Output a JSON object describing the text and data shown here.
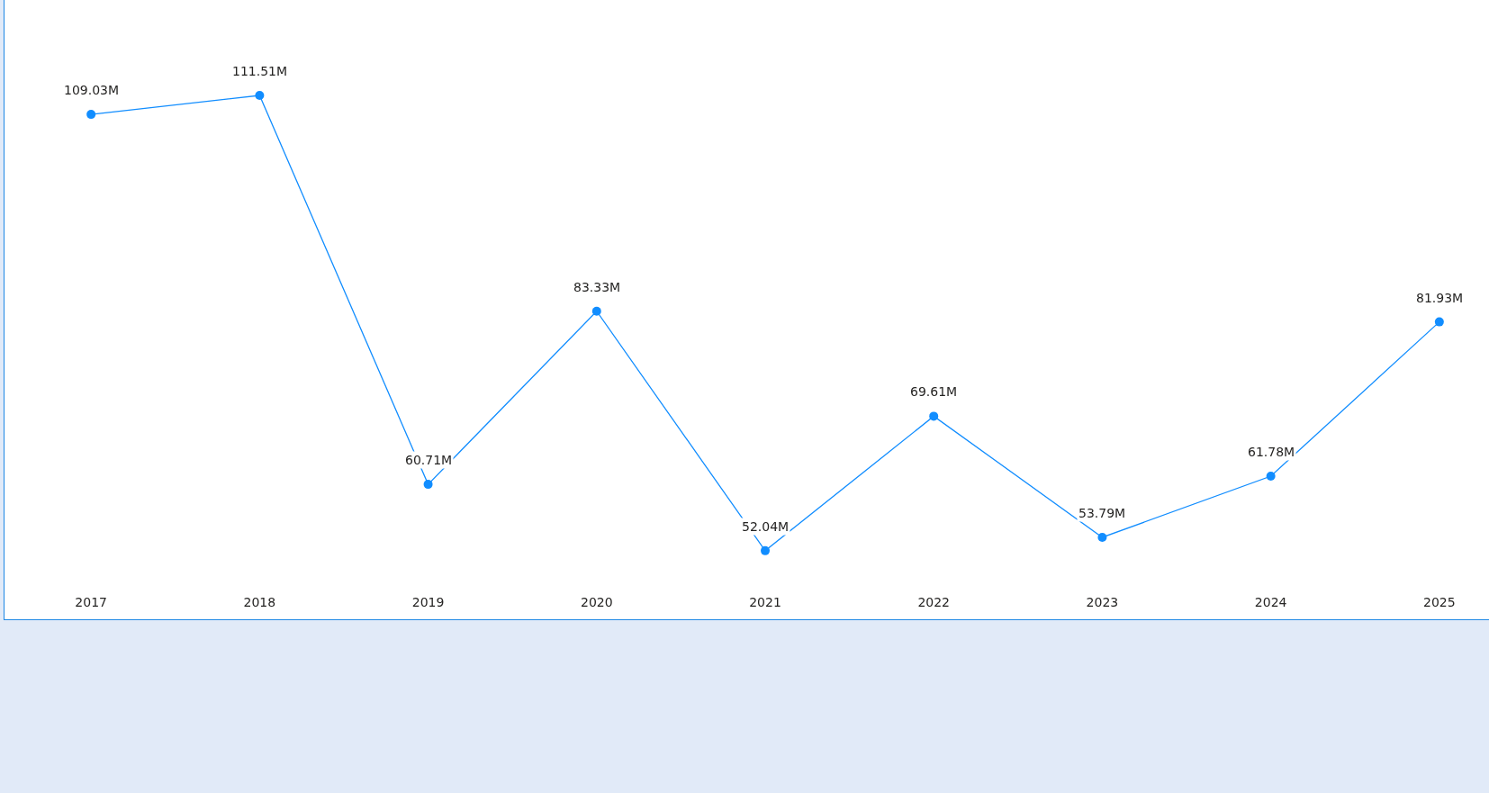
{
  "chart_data": {
    "type": "line",
    "categories": [
      "2017",
      "2018",
      "2019",
      "2020",
      "2021",
      "2022",
      "2023",
      "2024",
      "2025"
    ],
    "series": [
      {
        "color": "#118dff",
        "values": [
          109.03,
          111.51,
          60.71,
          83.33,
          52.04,
          69.61,
          53.79,
          61.78,
          81.93
        ],
        "value_labels": [
          "109.03M",
          "111.51M",
          "60.71M",
          "83.33M",
          "52.04M",
          "69.61M",
          "53.79M",
          "61.78M",
          "81.93M"
        ]
      }
    ],
    "marker": "circle",
    "line_style": "solid",
    "grid": false,
    "tick_labels": "x"
  }
}
